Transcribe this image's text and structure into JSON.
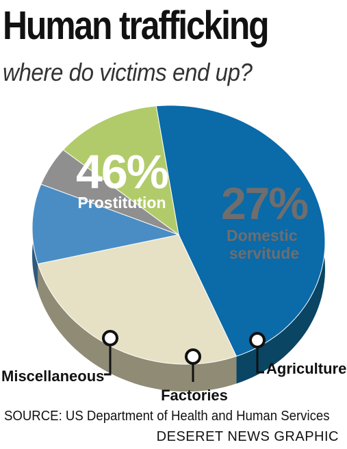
{
  "chart_data": {
    "type": "pie",
    "title": "Human trafficking",
    "subtitle": "where do victims end up?",
    "slices": [
      {
        "label": "Prostitution",
        "value": 46,
        "value_label": "46%",
        "color": "#0b6aa8",
        "side_color": "#0a4563"
      },
      {
        "label": "Domestic servitude",
        "value": 27,
        "value_label": "27%",
        "color": "#e6e1c5",
        "side_color": "#8f8b75"
      },
      {
        "label": "Agriculture",
        "value": 10,
        "value_label": "",
        "color": "#4a8dc4",
        "side_color": "#2f5a7d"
      },
      {
        "label": "Factories",
        "value": 5,
        "value_label": "",
        "color": "#8f8f8f",
        "side_color": "#555555"
      },
      {
        "label": "Miscellaneous",
        "value": 12,
        "value_label": "",
        "color": "#b1cb6a",
        "side_color": "#6a7a3e"
      }
    ]
  },
  "source": "SOURCE: US Department of Health and Human Services",
  "credit": "DESERET NEWS GRAPHIC"
}
